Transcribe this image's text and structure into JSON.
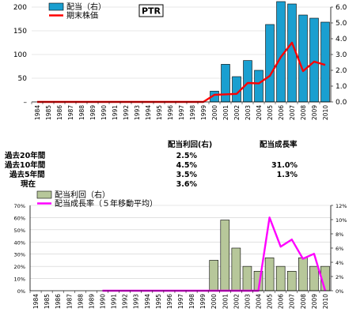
{
  "stats": {
    "col_headers": [
      "配当利回(右)",
      "配当成長率"
    ],
    "rows": [
      {
        "label": "過去20年間",
        "yield": "2.5%",
        "growth": ""
      },
      {
        "label": "過去10年間",
        "yield": "4.5%",
        "growth": "31.0%"
      },
      {
        "label": "過去5年間",
        "yield": "3.5%",
        "growth": "1.3%"
      },
      {
        "label": "現在",
        "yield": "3.6%",
        "growth": ""
      }
    ]
  },
  "chart_data": [
    {
      "type": "bar",
      "title": "",
      "ticker_label": "PTR",
      "categories": [
        "1984",
        "1985",
        "1986",
        "1987",
        "1988",
        "1989",
        "1990",
        "1991",
        "1992",
        "1993",
        "1994",
        "1995",
        "1996",
        "1997",
        "1998",
        "1999",
        "2000",
        "2001",
        "2002",
        "2003",
        "2004",
        "2005",
        "2006",
        "2007",
        "2008",
        "2009",
        "2010"
      ],
      "series": [
        {
          "name": "配当（右）",
          "kind": "bar",
          "axis": "right",
          "color": "#1a9fd0",
          "values": [
            0,
            0,
            0,
            0,
            0,
            0,
            0,
            0,
            0,
            0,
            0,
            0,
            0,
            0,
            0,
            0,
            0.68,
            2.38,
            1.6,
            2.62,
            2.0,
            4.9,
            6.35,
            6.2,
            5.5,
            5.3,
            5.05
          ]
        },
        {
          "name": "期末株価",
          "kind": "line",
          "axis": "left",
          "color": "#ff0000",
          "values": [
            0,
            0,
            0,
            0,
            0,
            0,
            0,
            0,
            0,
            0,
            0,
            0,
            0,
            0,
            0,
            0,
            15,
            16,
            17,
            40,
            39,
            55,
            95,
            125,
            65,
            85,
            78
          ]
        }
      ],
      "left_axis": {
        "ticks": [
          "–",
          "50",
          "100",
          "150",
          "200"
        ],
        "ylim": [
          0,
          200
        ]
      },
      "right_axis": {
        "ticks": [
          "0.0",
          "1.0",
          "2.0",
          "3.0",
          "4.0",
          "5.0",
          "6.0"
        ],
        "ylim": [
          0,
          6
        ]
      }
    },
    {
      "type": "bar",
      "title": "",
      "categories": [
        "1984",
        "1985",
        "1986",
        "1987",
        "1988",
        "1989",
        "1990",
        "1991",
        "1992",
        "1993",
        "1994",
        "1995",
        "1996",
        "1997",
        "1998",
        "1999",
        "2000",
        "2001",
        "2002",
        "2003",
        "2004",
        "2005",
        "2006",
        "2007",
        "2008",
        "2009",
        "2010"
      ],
      "series": [
        {
          "name": "配当利回（右）",
          "kind": "bar",
          "axis": "left",
          "color": "#b7c79a",
          "values": [
            0,
            0,
            0,
            0,
            0,
            0,
            0,
            0,
            0,
            0,
            0,
            0,
            0,
            0,
            0,
            0,
            25,
            58,
            35,
            20,
            16,
            27,
            20,
            16,
            27,
            20,
            20
          ]
        },
        {
          "name": "配当成長率（５年移動平均）",
          "kind": "line",
          "axis": "right",
          "color": "#ff00ff",
          "values": [
            null,
            null,
            null,
            null,
            null,
            null,
            0,
            0,
            0,
            0,
            0,
            0,
            0,
            0,
            0,
            0,
            0,
            0,
            0,
            0,
            0,
            10.3,
            6.2,
            7.2,
            4.5,
            5.2,
            0
          ]
        }
      ],
      "left_axis": {
        "ticks": [
          "0%",
          "10%",
          "20%",
          "30%",
          "40%",
          "50%",
          "60%",
          "70%"
        ],
        "ylim": [
          0,
          70
        ]
      },
      "right_axis": {
        "ticks": [
          "0%",
          "2%",
          "4%",
          "6%",
          "8%",
          "10%",
          "12%"
        ],
        "ylim": [
          0,
          12
        ]
      }
    }
  ]
}
